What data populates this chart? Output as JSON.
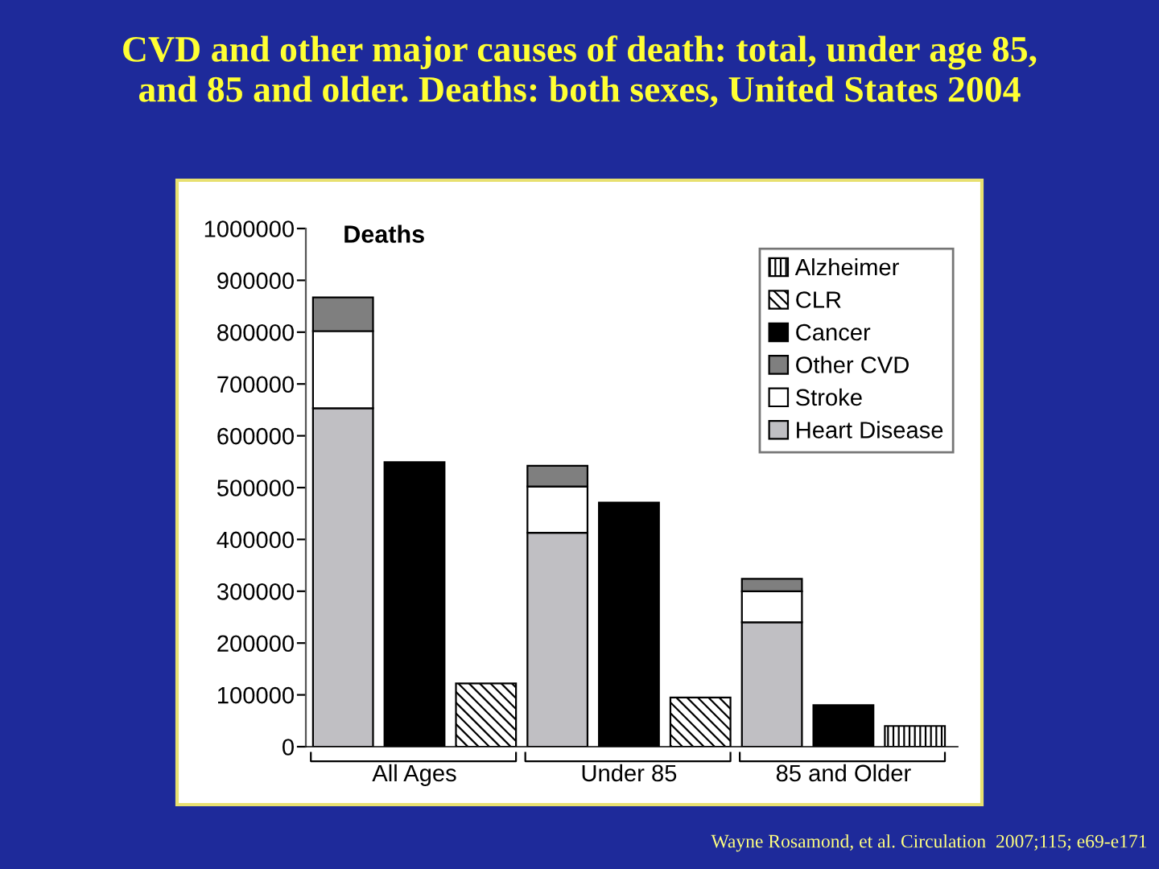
{
  "chart_data": {
    "type": "bar",
    "title": "CVD and other major causes of death: total, under age 85,\nand 85 and older. Deaths: both sexes, United States 2004",
    "ylabel": "Deaths",
    "categories": [
      null,
      "All Ages",
      null,
      null,
      "Under 85",
      null,
      null,
      "85 and Older",
      null
    ],
    "stacked": true,
    "series": [
      {
        "name": "Heart Disease",
        "color": "#c0bfc3",
        "values": [
          653000,
          null,
          null,
          413000,
          null,
          null,
          240000,
          null,
          null
        ]
      },
      {
        "name": "Stroke",
        "color": "#ffffff",
        "values": [
          149000,
          null,
          null,
          89000,
          null,
          null,
          60000,
          null,
          null
        ]
      },
      {
        "name": "Other CVD",
        "color": "#7f7f7f",
        "values": [
          65000,
          null,
          null,
          40000,
          null,
          null,
          24000,
          null,
          null
        ]
      },
      {
        "name": "Cancer",
        "color": "#000000",
        "values": [
          null,
          549000,
          null,
          null,
          471000,
          null,
          null,
          80000,
          null
        ]
      },
      {
        "name": "CLR",
        "color": "#000000",
        "values": [
          null,
          null,
          122000,
          null,
          null,
          95000,
          null,
          null,
          null
        ]
      },
      {
        "name": "Alzheimer",
        "color": "#000000",
        "values": [
          null,
          null,
          null,
          null,
          null,
          null,
          null,
          null,
          40000
        ]
      }
    ],
    "ylim": [
      0,
      1000000
    ],
    "yticks": [
      0,
      100000,
      200000,
      300000,
      400000,
      500000,
      600000,
      700000,
      800000,
      900000,
      1000000
    ],
    "grid": false,
    "legend": "top right",
    "annotations": [
      "Wayne Rosamond, et al. Circulation  2007;115; e69-e171"
    ]
  }
}
